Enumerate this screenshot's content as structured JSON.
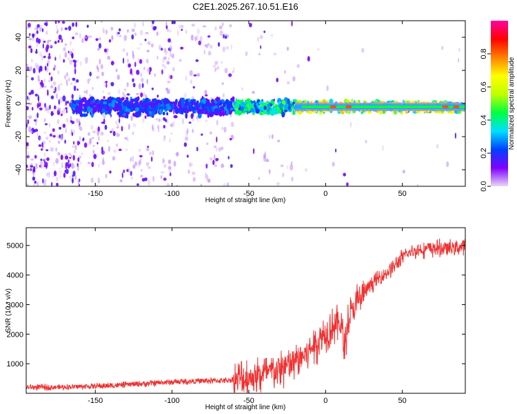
{
  "title": "C2E1.2025.267.10.51.E16",
  "chart_data": [
    {
      "type": "heatmap",
      "name": "spectrogram",
      "xlabel": "Height of straight line (km)",
      "ylabel": "Frequency (Hz)",
      "xlim": [
        -195,
        91
      ],
      "ylim": [
        -50,
        50
      ],
      "xticks": [
        -150,
        -100,
        -50,
        0,
        50
      ],
      "yticks": [
        -40,
        -20,
        0,
        20,
        40
      ],
      "colorbar": {
        "label": "Normalized spectral amplitude",
        "range": [
          0,
          1
        ],
        "ticks": [
          0.0,
          0.2,
          0.4,
          0.6,
          0.8
        ],
        "stops": [
          "#e8d8f8",
          "#7e00ff",
          "#0040ff",
          "#00e0ff",
          "#00ff40",
          "#c0ff00",
          "#ffff00",
          "#ff8000",
          "#ff0000",
          "#ff00a0"
        ]
      },
      "ridge": {
        "center_hz": -2,
        "segments": [
          {
            "x_start": -165,
            "x_end": -60,
            "half_width_hz": 5,
            "amplitude": 0.2
          },
          {
            "x_start": -60,
            "x_end": -20,
            "half_width_hz": 4,
            "amplitude": 0.35
          },
          {
            "x_start": -20,
            "x_end": 91,
            "half_width_hz": 3,
            "amplitude": 0.5
          }
        ],
        "peaks_km": [
          5,
          15,
          78,
          85
        ]
      }
    },
    {
      "type": "line",
      "name": "snr",
      "xlabel": "Height of straight line (km)",
      "ylabel": "SNR (10 * v/v)",
      "xlim": [
        -195,
        91
      ],
      "ylim": [
        0,
        5600
      ],
      "xticks": [
        -150,
        -100,
        -50,
        0,
        50
      ],
      "yticks": [
        1000,
        2000,
        3000,
        4000,
        5000
      ],
      "color": "#f03030",
      "series": [
        {
          "name": "SNR envelope",
          "x": [
            -195,
            -170,
            -140,
            -120,
            -100,
            -80,
            -70,
            -60,
            -50,
            -40,
            -30,
            -25,
            -20,
            -15,
            -10,
            -5,
            0,
            5,
            10,
            12,
            15,
            20,
            25,
            30,
            35,
            40,
            45,
            50,
            55,
            60,
            70,
            80,
            88,
            91
          ],
          "y": [
            200,
            210,
            260,
            320,
            380,
            420,
            430,
            450,
            520,
            650,
            800,
            900,
            1050,
            1250,
            1500,
            1750,
            2050,
            2300,
            2400,
            1500,
            2500,
            3000,
            3400,
            3700,
            3900,
            4100,
            4300,
            4600,
            4750,
            4850,
            4900,
            4900,
            4950,
            5000
          ]
        }
      ]
    }
  ]
}
